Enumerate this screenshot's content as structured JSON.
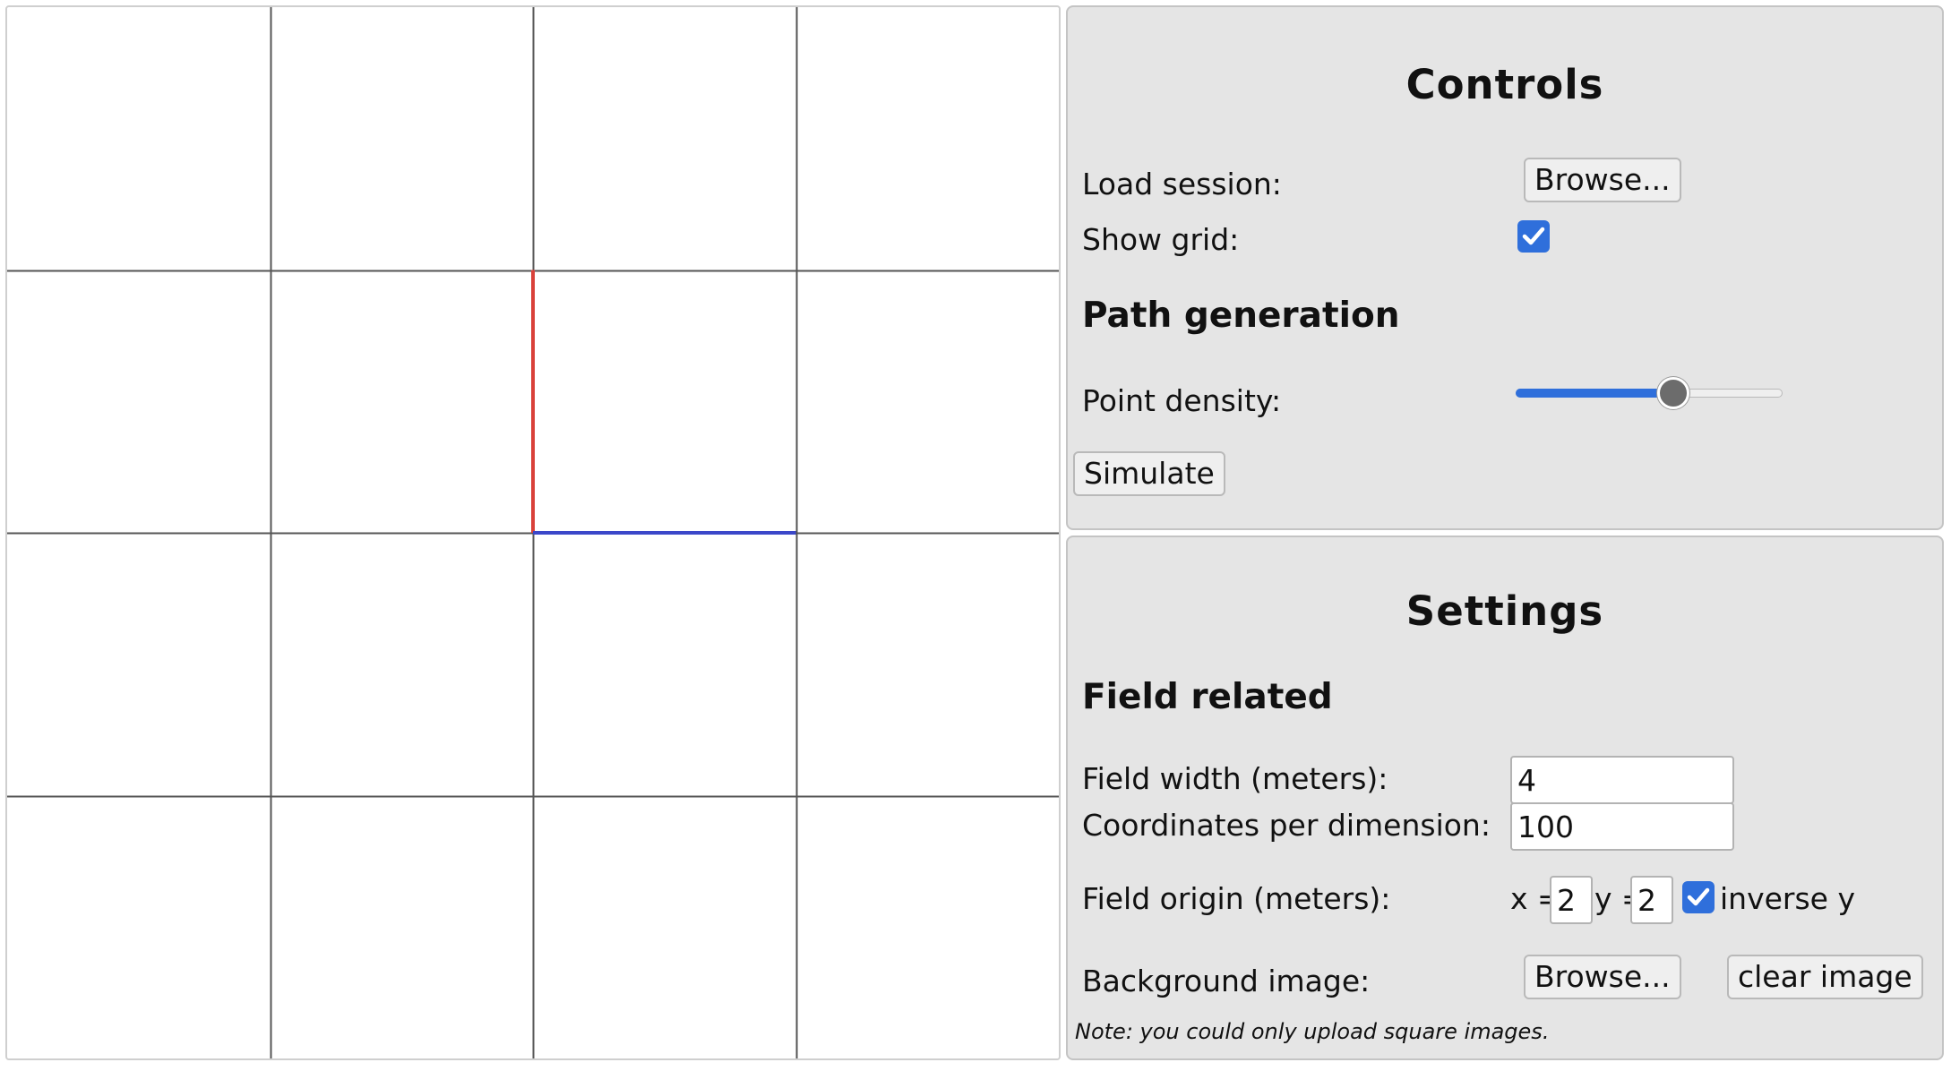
{
  "field": {
    "grid_divisions": 4,
    "grid_color": "#555555",
    "path_segments": [
      {
        "name": "red-path-segment",
        "from": [
          2,
          1
        ],
        "to": [
          2,
          2
        ],
        "color": "#d9413a"
      },
      {
        "name": "blue-path-segment",
        "from": [
          2,
          2
        ],
        "to": [
          3,
          2
        ],
        "color": "#3b47c9"
      }
    ]
  },
  "controls": {
    "title": "Controls",
    "load_session_label": "Load session:",
    "load_session_button": "Browse...",
    "show_grid_label": "Show grid:",
    "show_grid_checked": true,
    "path_generation_title": "Path generation",
    "point_density_label": "Point density:",
    "point_density_fraction": 0.59,
    "simulate_button": "Simulate"
  },
  "settings": {
    "title": "Settings",
    "field_related_title": "Field related",
    "field_width_label": "Field width (meters):",
    "field_width_value": "4",
    "coords_label": "Coordinates per dimension:",
    "coords_value": "100",
    "origin_label": "Field origin (meters):",
    "origin_x_prefix": "x =",
    "origin_x_value": "2",
    "origin_y_prefix": "y =",
    "origin_y_value": "2",
    "inverse_y_checked": true,
    "inverse_y_label": "inverse y",
    "background_label": "Background image:",
    "background_browse_button": "Browse...",
    "clear_image_button": "clear image",
    "note": "Note: you could only upload square images."
  },
  "colors": {
    "accent": "#2f6fdb",
    "panel_bg": "#e5e5e5"
  }
}
